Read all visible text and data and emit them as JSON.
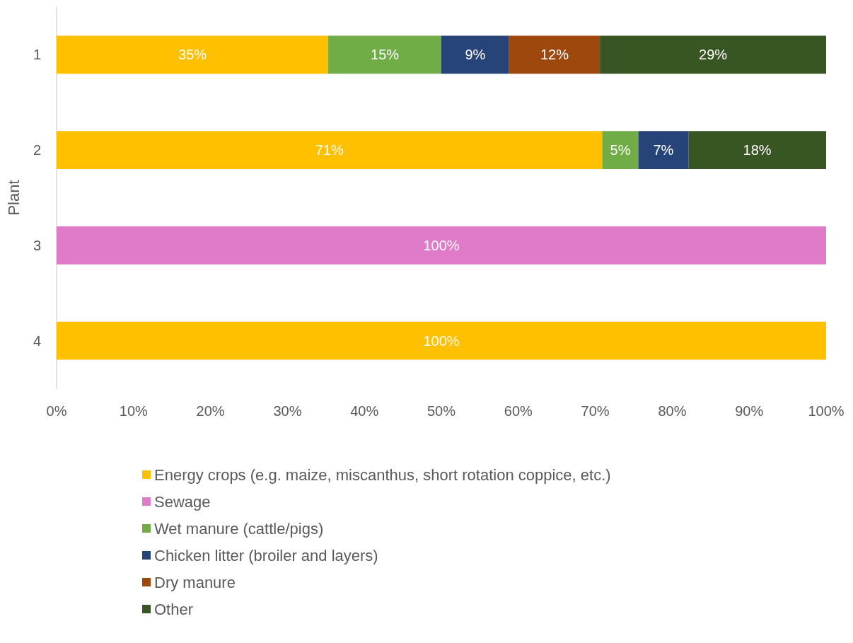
{
  "chart_data": {
    "type": "bar",
    "orientation": "horizontal",
    "stacked": true,
    "ylabel": "Plant",
    "categories": [
      "1",
      "2",
      "3",
      "4"
    ],
    "series": [
      {
        "name": "Energy crops (e.g. maize, miscanthus, short rotation coppice, etc.)",
        "color": "#ffc000",
        "values": [
          35.3,
          70.9,
          null,
          100
        ],
        "value_labels": [
          "35%",
          "71%",
          null,
          "100%"
        ]
      },
      {
        "name": "Sewage",
        "color": "#e07bca",
        "values": [
          null,
          null,
          100,
          null
        ],
        "value_labels": [
          null,
          null,
          "100%",
          null
        ]
      },
      {
        "name": "Wet manure (cattle/pigs)",
        "color": "#70ad47",
        "values": [
          14.7,
          4.7,
          null,
          null
        ],
        "value_labels": [
          "15%",
          "5%",
          null,
          null
        ]
      },
      {
        "name": "Chicken litter (broiler and layers)",
        "color": "#264478",
        "values": [
          8.8,
          6.5,
          null,
          null
        ],
        "value_labels": [
          "9%",
          "7%",
          null,
          null
        ]
      },
      {
        "name": "Dry manure",
        "color": "#9e480e",
        "values": [
          11.8,
          null,
          null,
          null
        ],
        "value_labels": [
          "12%",
          null,
          null,
          null
        ]
      },
      {
        "name": "Other",
        "color": "#375623",
        "values": [
          29.4,
          17.9,
          null,
          null
        ],
        "value_labels": [
          "29%",
          "18%",
          null,
          null
        ]
      }
    ],
    "xlim": [
      0,
      100
    ],
    "xticks": [
      {
        "value": 0,
        "label": "0%"
      },
      {
        "value": 10,
        "label": "10%"
      },
      {
        "value": 20,
        "label": "20%"
      },
      {
        "value": 30,
        "label": "30%"
      },
      {
        "value": 40,
        "label": "40%"
      },
      {
        "value": 50,
        "label": "50%"
      },
      {
        "value": 60,
        "label": "60%"
      },
      {
        "value": 70,
        "label": "70%"
      },
      {
        "value": 80,
        "label": "80%"
      },
      {
        "value": 90,
        "label": "90%"
      },
      {
        "value": 100,
        "label": "100%"
      }
    ],
    "grid": false,
    "legend": "bottom"
  }
}
